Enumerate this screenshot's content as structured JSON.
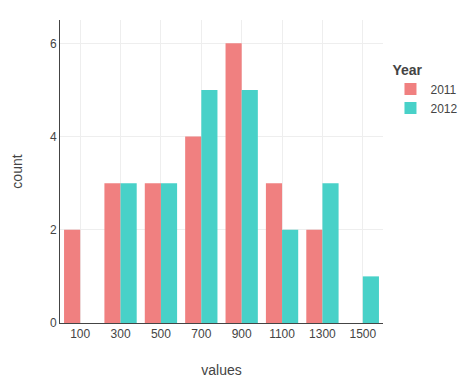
{
  "chart_data": {
    "type": "bar",
    "xlabel": "values",
    "ylabel": "count",
    "categories": [
      100,
      300,
      500,
      700,
      900,
      1100,
      1300,
      1500
    ],
    "series": [
      {
        "name": "2011",
        "color": "#F08080",
        "values": [
          2,
          3,
          3,
          4,
          6,
          3,
          2,
          0
        ]
      },
      {
        "name": "2012",
        "color": "#48D1C8",
        "values": [
          0,
          3,
          3,
          5,
          5,
          2,
          3,
          1
        ]
      }
    ],
    "legend_title": "Year",
    "legend": "right",
    "ylim": [
      0,
      6.5
    ],
    "yticks": [
      0,
      2,
      4,
      6
    ],
    "grid": true
  }
}
